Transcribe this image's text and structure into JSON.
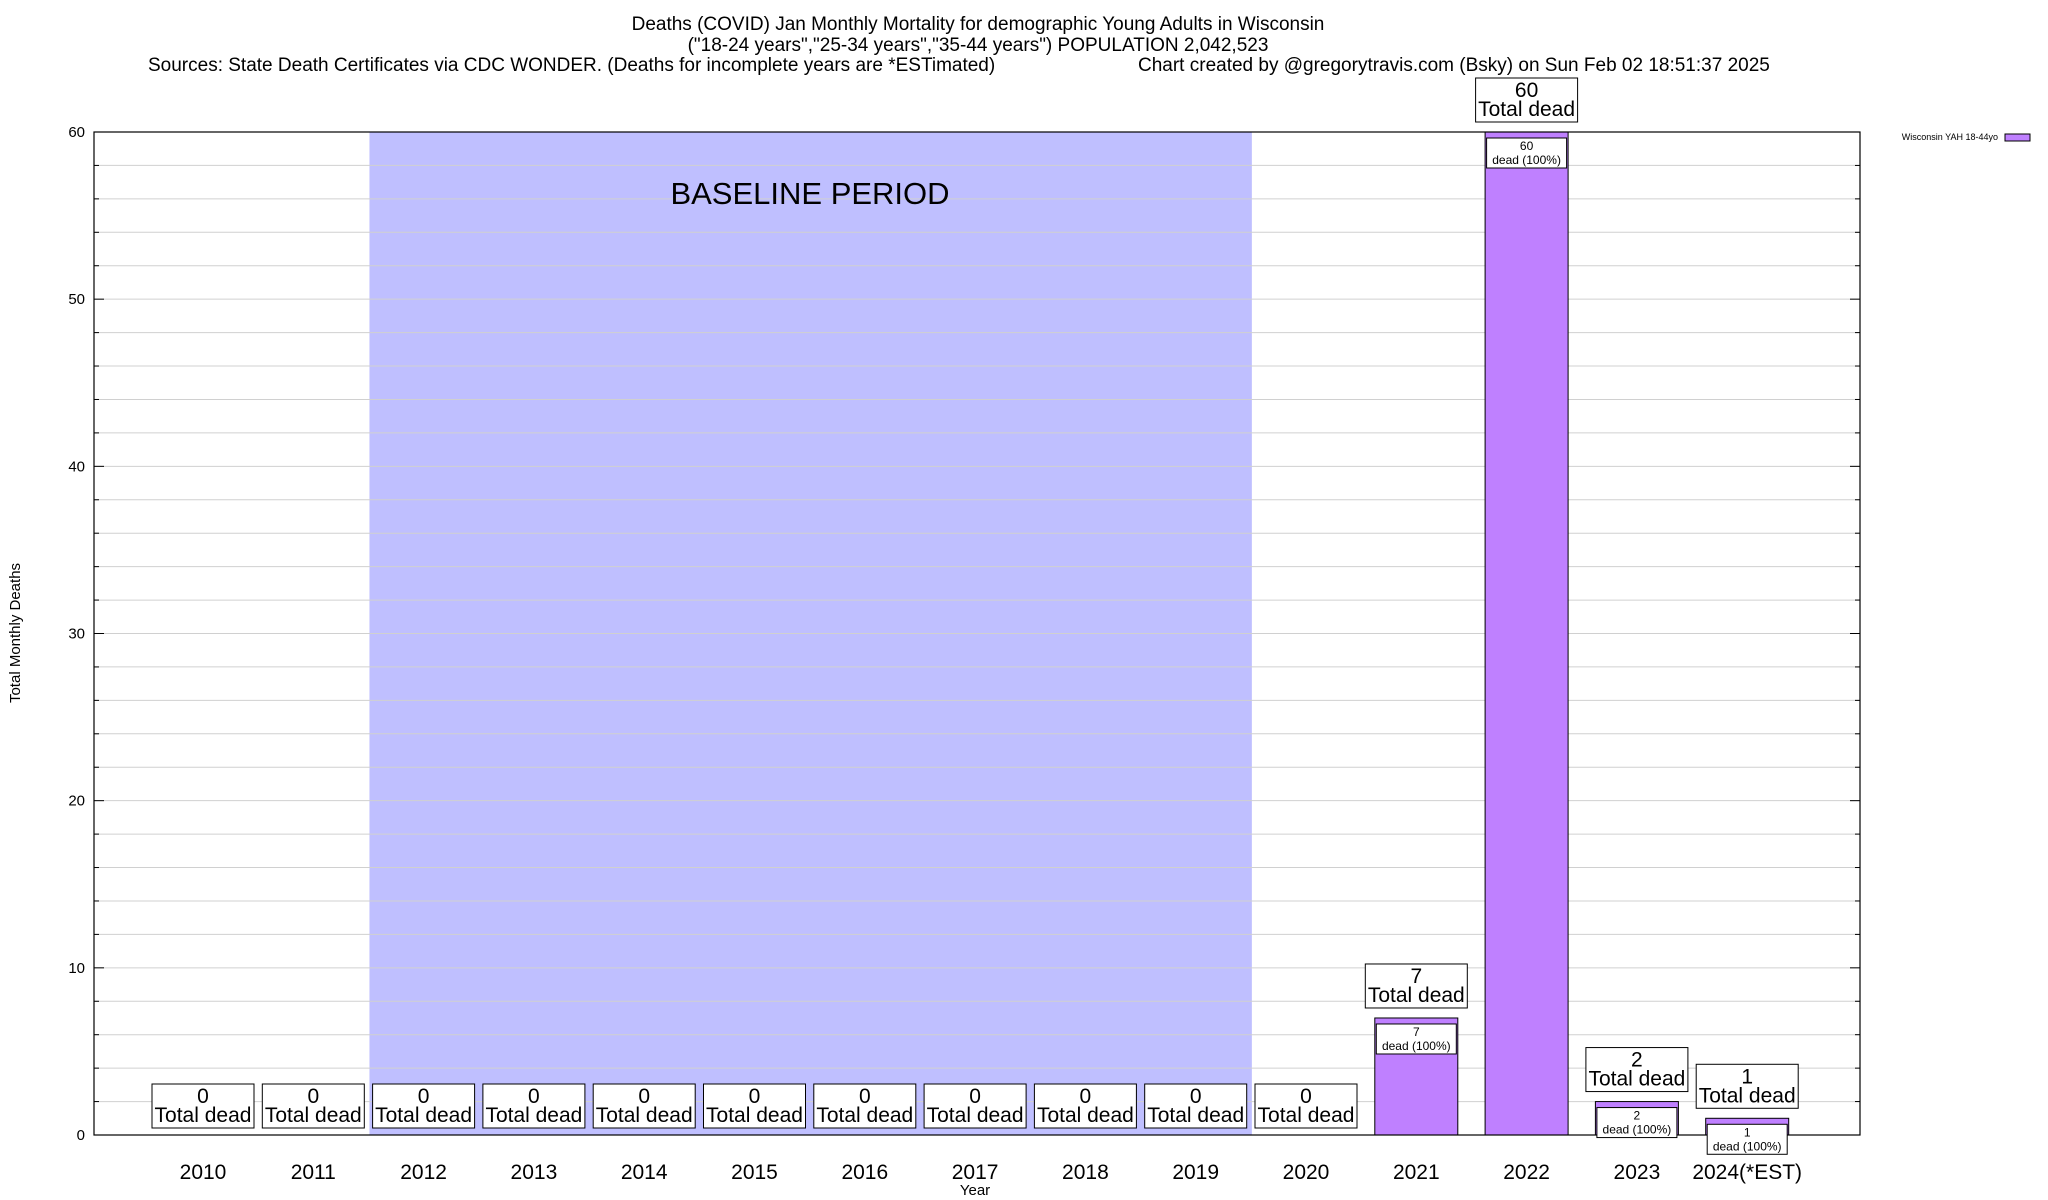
{
  "chart_data": {
    "type": "bar",
    "title_lines": [
      "Deaths (COVID) Jan Monthly Mortality for demographic Young Adults in Wisconsin",
      "(\"18-24 years\",\"25-34 years\",\"35-44 years\") POPULATION 2,042,523"
    ],
    "sources": "Sources: State Death Certificates via CDC WONDER. (Deaths for incomplete years are *ESTimated)",
    "credit": "Chart created by @gregorytravis.com (Bsky) on Sun Feb 02 18:51:37 2025",
    "xlabel": "Year",
    "ylabel": "Total Monthly Deaths",
    "ylim": [
      0,
      60
    ],
    "yticks": [
      0,
      10,
      20,
      30,
      40,
      50,
      60
    ],
    "grid": true,
    "legend_position": "top-right",
    "categories": [
      "2010",
      "2011",
      "2012",
      "2013",
      "2014",
      "2015",
      "2016",
      "2017",
      "2018",
      "2019",
      "2020",
      "2021",
      "2022",
      "2023",
      "2024(*EST)"
    ],
    "series": [
      {
        "name": "Wisconsin YAH 18-44yo",
        "color": "#bf80ff",
        "values": [
          0,
          0,
          0,
          0,
          0,
          0,
          0,
          0,
          0,
          0,
          0,
          7,
          60,
          2,
          1
        ]
      }
    ],
    "total_label_suffix": "Total dead",
    "inner_label_suffix": "dead (100%)",
    "baseline": {
      "label": "BASELINE PERIOD",
      "from": "2012",
      "to": "2019",
      "color": "#bfbfff"
    }
  }
}
